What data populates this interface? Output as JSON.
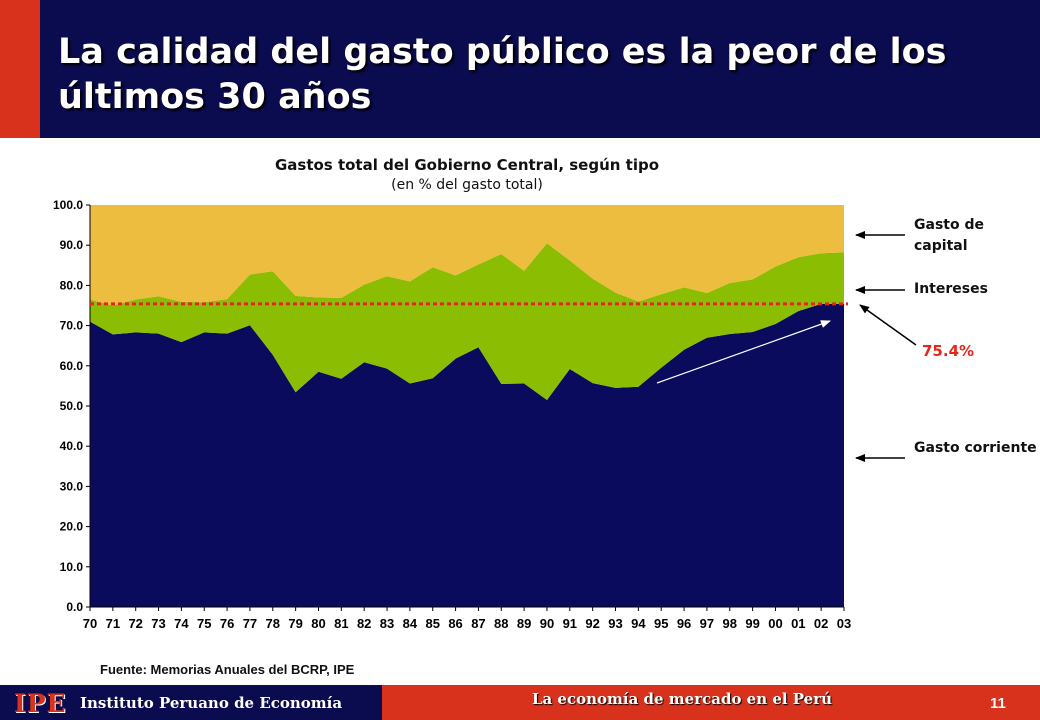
{
  "header": {
    "title": "La calidad del gasto público es la peor de los últimos 30 años"
  },
  "chart_data": {
    "type": "area",
    "stacked": true,
    "title": "Gastos total del Gobierno Central, según tipo",
    "subtitle": "(en % del gasto total)",
    "categories": [
      "70",
      "71",
      "72",
      "73",
      "74",
      "75",
      "76",
      "77",
      "78",
      "79",
      "80",
      "81",
      "82",
      "83",
      "84",
      "85",
      "86",
      "87",
      "88",
      "89",
      "90",
      "91",
      "92",
      "93",
      "94",
      "95",
      "96",
      "97",
      "98",
      "99",
      "00",
      "01",
      "02",
      "03"
    ],
    "ylim": [
      0,
      100
    ],
    "yticks": [
      "0.0",
      "10.0",
      "20.0",
      "30.0",
      "40.0",
      "50.0",
      "60.0",
      "70.0",
      "80.0",
      "90.0",
      "100.0"
    ],
    "series": [
      {
        "name": "Gasto corriente",
        "color": "#0b0b5e",
        "values": [
          71.0,
          67.8,
          68.3,
          68.0,
          65.9,
          68.3,
          68.0,
          70.1,
          62.7,
          53.4,
          58.5,
          56.8,
          60.9,
          59.3,
          55.6,
          56.9,
          61.8,
          64.6,
          55.5,
          55.6,
          51.5,
          59.2,
          55.7,
          54.5,
          54.8,
          59.5,
          64.0,
          67.0,
          67.9,
          68.4,
          70.4,
          73.6,
          75.4,
          75.4
        ]
      },
      {
        "name": "Intereses",
        "color": "#8bbe02",
        "values": [
          5.5,
          7.2,
          8.2,
          9.3,
          10.0,
          7.5,
          8.6,
          12.6,
          20.8,
          24.0,
          18.5,
          20.1,
          19.3,
          23.0,
          25.4,
          27.6,
          20.7,
          20.6,
          32.3,
          28.0,
          39.0,
          27.0,
          26.0,
          23.7,
          21.2,
          18.3,
          15.5,
          11.1,
          12.7,
          13.1,
          14.3,
          13.4,
          12.6,
          12.8
        ]
      },
      {
        "name": "Gasto de capital",
        "color": "#ecbd3e",
        "values": [
          23.5,
          25.0,
          23.5,
          22.7,
          24.1,
          24.2,
          23.4,
          17.3,
          16.5,
          22.6,
          23.0,
          23.1,
          19.8,
          17.7,
          19.0,
          15.5,
          17.5,
          14.8,
          12.2,
          16.4,
          9.5,
          13.8,
          18.3,
          21.8,
          24.0,
          22.2,
          20.5,
          21.9,
          19.4,
          18.5,
          15.3,
          13.0,
          12.0,
          11.8
        ]
      }
    ],
    "reference_line": {
      "value": 75.4,
      "label": "75.4%",
      "color": "#e8251b"
    },
    "legend": "right",
    "legend_labels": [
      "Gasto de capital",
      "Intereses",
      "Gasto corriente"
    ]
  },
  "source": "Fuente: Memorias Anuales del BCRP, IPE",
  "footer": {
    "logo": "IPE",
    "institute": "Instituto Peruano de Economía",
    "tagline": "La economía de mercado en el Perú",
    "page": "11"
  }
}
